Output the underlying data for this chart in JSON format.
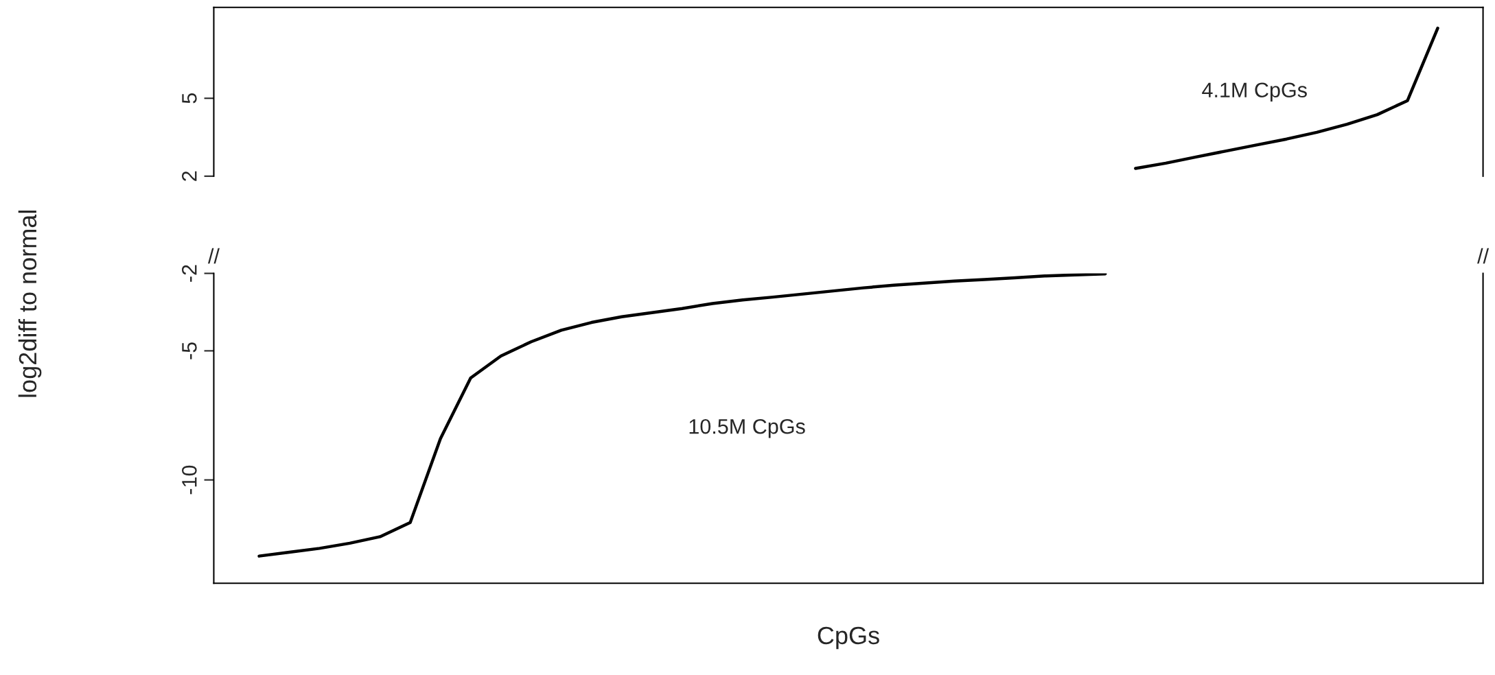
{
  "chart_data": [
    {
      "type": "line",
      "ylabel": "log2diff to normal",
      "categories": [
        null,
        null,
        null,
        null,
        null,
        null,
        null,
        null,
        null,
        null,
        null,
        null,
        null,
        null,
        null,
        null,
        null,
        null,
        null,
        null,
        null,
        null,
        null,
        null,
        null,
        null,
        null,
        null,
        null,
        null,
        null,
        null,
        null,
        null,
        null,
        null,
        null,
        null,
        null,
        null,
        null,
        null
      ],
      "series": [
        {
          "color": "#000000",
          "values": [
            null,
            null,
            null,
            null,
            null,
            null,
            null,
            null,
            null,
            null,
            null,
            null,
            null,
            null,
            null,
            null,
            null,
            null,
            null,
            null,
            null,
            null,
            null,
            null,
            null,
            null,
            null,
            null,
            null,
            null,
            2.3,
            2.5,
            2.74,
            2.97,
            3.2,
            3.43,
            3.69,
            4.0,
            4.37,
            4.91,
            7.7,
            null
          ]
        }
      ],
      "ylim": [
        2,
        8.5
      ],
      "yticks": [
        2,
        5
      ],
      "tick_labels": "y",
      "grid": false,
      "legend": false,
      "line_style": "solid",
      "marker": "none",
      "annotations": [
        "4.1M CpGs"
      ]
    },
    {
      "type": "line",
      "xlabel": "CpGs",
      "categories": [
        null,
        null,
        null,
        null,
        null,
        null,
        null,
        null,
        null,
        null,
        null,
        null,
        null,
        null,
        null,
        null,
        null,
        null,
        null,
        null,
        null,
        null,
        null,
        null,
        null,
        null,
        null,
        null,
        null,
        null,
        null,
        null,
        null,
        null,
        null,
        null,
        null,
        null,
        null,
        null,
        null,
        null
      ],
      "series": [
        {
          "color": "#000000",
          "values": [
            null,
            -12.95,
            -12.8,
            -12.65,
            -12.45,
            -12.2,
            -11.65,
            -8.4,
            -6.05,
            -5.2,
            -4.65,
            -4.2,
            -3.9,
            -3.68,
            -3.52,
            -3.36,
            -3.17,
            -3.03,
            -2.92,
            -2.8,
            -2.68,
            -2.56,
            -2.46,
            -2.38,
            -2.3,
            -2.24,
            -2.17,
            -2.1,
            -2.06,
            -2.02,
            null,
            null,
            null,
            null,
            null,
            null,
            null,
            null,
            null,
            null,
            null,
            null
          ]
        }
      ],
      "ylim": [
        -14,
        -2
      ],
      "yticks": [
        -10,
        -5,
        -2
      ],
      "tick_labels": "y",
      "grid": false,
      "legend": false,
      "line_style": "solid",
      "marker": "none",
      "annotations": [
        "10.5M CpGs",
        "//",
        "//"
      ]
    }
  ]
}
